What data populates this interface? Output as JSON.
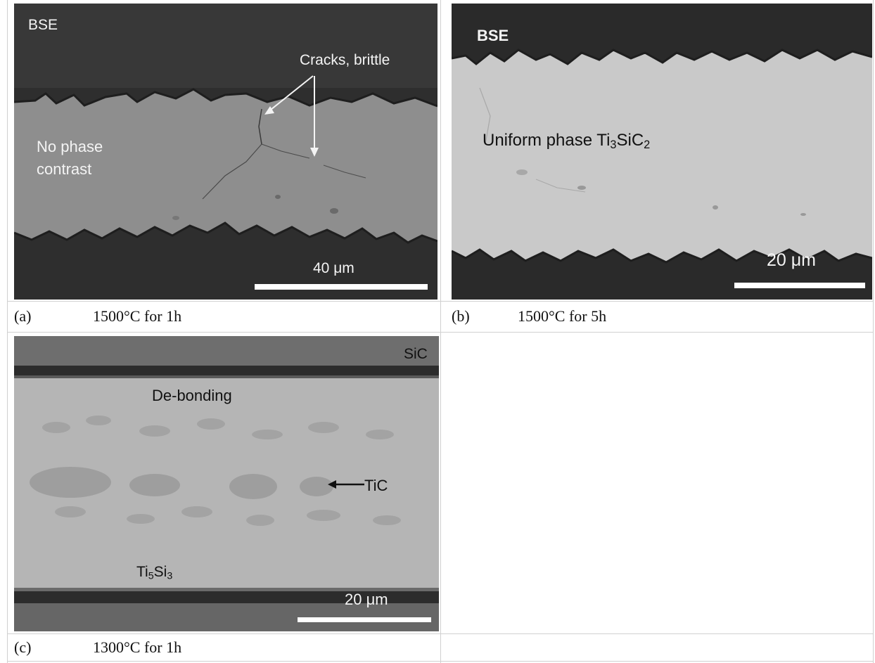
{
  "panels": {
    "a": {
      "caption_letter": "(a)",
      "caption_condition": "1500°C for 1h",
      "labels": {
        "mode": "BSE",
        "cracks": "Cracks, brittle",
        "phase_line1": "No phase",
        "phase_line2": "contrast",
        "scale": "40 μm"
      }
    },
    "b": {
      "caption_letter": "(b)",
      "caption_condition": "1500°C for 5h",
      "labels": {
        "mode": "BSE",
        "phase_prefix": "Uniform phase Ti",
        "phase_sub1": "3",
        "phase_mid": "SiC",
        "phase_sub2": "2",
        "scale": "20 μm"
      }
    },
    "c": {
      "caption_letter": "(c)",
      "caption_condition": "1300°C for 1h",
      "labels": {
        "sic": "SiC",
        "debonding": "De-bonding",
        "tic": "TiC",
        "ti5si3_prefix": "Ti",
        "ti5si3_sub1": "5",
        "ti5si3_mid": "Si",
        "ti5si3_sub2": "3",
        "scale": "20 μm"
      }
    }
  },
  "colors": {
    "dark_region": "#2b2b2b",
    "panel_a_band": "#8e8e8e",
    "panel_b_band": "#c9c9c9",
    "panel_c_matrix": "#b5b5b5",
    "panel_c_top": "#6e6e6e",
    "grid_lines": "#d0d0d0"
  }
}
